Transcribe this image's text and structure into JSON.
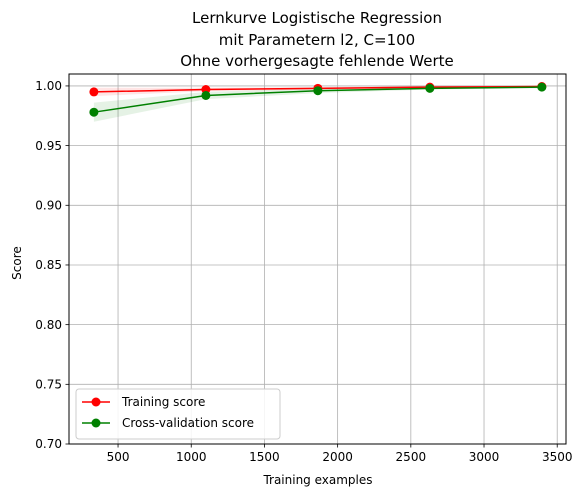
{
  "chart_data": {
    "type": "line",
    "title_lines": [
      "Lernkurve Logistische Regression",
      "mit Parametern l2, C=100",
      "Ohne vorhergesagte fehlende Werte"
    ],
    "xlabel": "Training examples",
    "ylabel": "Score",
    "xlim": [
      165,
      3560
    ],
    "ylim": [
      0.7,
      1.01
    ],
    "xticks": [
      500,
      1000,
      1500,
      2000,
      2500,
      3000,
      3500
    ],
    "yticks": [
      0.7,
      0.75,
      0.8,
      0.85,
      0.9,
      0.95,
      1.0
    ],
    "xtick_labels": [
      "500",
      "1000",
      "1500",
      "2000",
      "2500",
      "3000",
      "3500"
    ],
    "ytick_labels": [
      "0.70",
      "0.75",
      "0.80",
      "0.85",
      "0.90",
      "0.95",
      "1.00"
    ],
    "grid": true,
    "legend_position": "lower-left",
    "x": [
      335,
      1100,
      1865,
      2630,
      3395
    ],
    "series": [
      {
        "name": "Training score",
        "color": "#ff0000",
        "values": [
          0.995,
          0.997,
          0.998,
          0.999,
          0.9995
        ],
        "band_lower": [
          0.9915,
          0.9955,
          0.997,
          0.998,
          0.999
        ],
        "band_upper": [
          0.9985,
          0.9985,
          0.999,
          1.0,
          1.0
        ]
      },
      {
        "name": "Cross-validation score",
        "color": "#008000",
        "values": [
          0.978,
          0.992,
          0.996,
          0.998,
          0.999
        ],
        "band_lower": [
          0.97,
          0.989,
          0.994,
          0.997,
          0.998
        ],
        "band_upper": [
          0.986,
          0.995,
          0.998,
          0.999,
          1.0
        ]
      }
    ]
  }
}
